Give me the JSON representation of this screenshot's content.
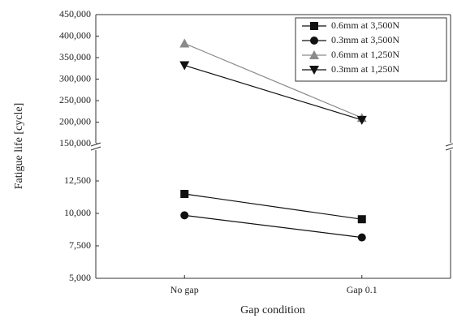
{
  "chart_data": {
    "type": "line",
    "x_label": "Gap condition",
    "y_label": "Fatigue life [cycle]",
    "categories": [
      "No gap",
      "Gap 0.1"
    ],
    "series": [
      {
        "name": "0.6mm at 3,500N",
        "color": "#111111",
        "marker": "square",
        "values": [
          11500,
          9550
        ]
      },
      {
        "name": "0.3mm at 3,500N",
        "color": "#111111",
        "marker": "circle",
        "values": [
          9850,
          8150
        ]
      },
      {
        "name": "0.6mm at 1,250N",
        "color": "#8a8a8a",
        "marker": "triangle-up",
        "axis": "y2",
        "values": [
          383000,
          210000
        ]
      },
      {
        "name": "0.3mm at 1,250N",
        "color": "#111111",
        "marker": "triangle-down",
        "axis": "y2",
        "values": [
          332000,
          205000
        ]
      }
    ],
    "ylim": [
      5000,
      15000
    ],
    "yticks": [
      {
        "value": 5000,
        "label": "5,000"
      },
      {
        "value": 7500,
        "label": "7,500"
      },
      {
        "value": 10000,
        "label": "10,000"
      },
      {
        "value": 12500,
        "label": "12,500"
      }
    ],
    "y2lim": [
      150000,
      450000
    ],
    "y2ticks": [
      {
        "value": 150000,
        "label": "150,000"
      },
      {
        "value": 200000,
        "label": "200,000"
      },
      {
        "value": 250000,
        "label": "250,000"
      },
      {
        "value": 300000,
        "label": "300,000"
      },
      {
        "value": 350000,
        "label": "350,000"
      },
      {
        "value": 400000,
        "label": "400,000"
      },
      {
        "value": 450000,
        "label": "450,000"
      }
    ],
    "legend": "upper right"
  }
}
